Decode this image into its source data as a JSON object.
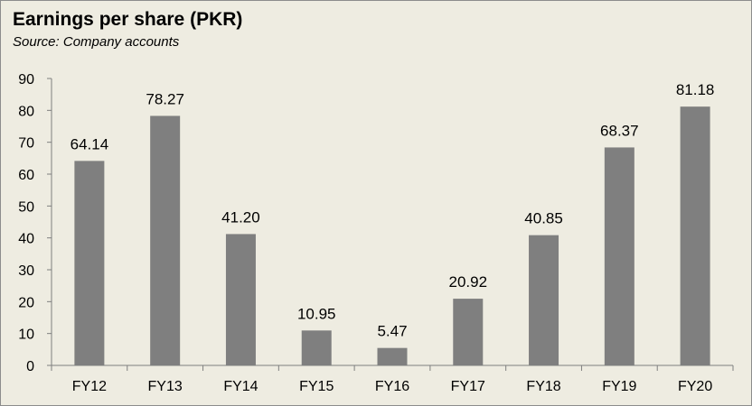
{
  "chart_data": {
    "type": "bar",
    "title": "Earnings per share (PKR)",
    "subtitle": "Source: Company accounts",
    "categories": [
      "FY12",
      "FY13",
      "FY14",
      "FY15",
      "FY16",
      "FY17",
      "FY18",
      "FY19",
      "FY20"
    ],
    "values": [
      64.14,
      78.27,
      41.2,
      10.95,
      5.47,
      20.92,
      40.85,
      68.37,
      81.18
    ],
    "data_labels": [
      "64.14",
      "78.27",
      "41.20",
      "10.95",
      "5.47",
      "20.92",
      "40.85",
      "68.37",
      "81.18"
    ],
    "ylim": [
      0,
      90
    ],
    "yticks": [
      0,
      10,
      20,
      30,
      40,
      50,
      60,
      70,
      80,
      90
    ],
    "xlabel": "",
    "ylabel": "",
    "grid": false,
    "legend": "none",
    "colors": {
      "bar": "#7f7f7f",
      "background": "#eeece1",
      "axis": "#7f7f7f",
      "border": "#8c8c8c",
      "text": "#000000"
    }
  }
}
